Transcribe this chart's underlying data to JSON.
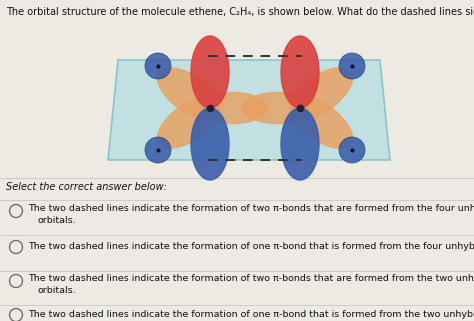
{
  "title": "The orbital structure of the molecule ethene, C₂H₄, is shown below. What do the dashed lines signify?",
  "subtitle": "Select the correct answer below:",
  "options": [
    [
      "The two dashed lines indicate the formation of two π-bonds that are formed from the four unhybridized p",
      "orbitals."
    ],
    [
      "The two dashed lines indicate the formation of one π-bond that is formed from the four unhybridized p orbitals."
    ],
    [
      "The two dashed lines indicate the formation of two π-bonds that are formed from the two unhybridized p",
      "orbitals."
    ],
    [
      "The two dashed lines indicate the formation of one π-bond that is formed from the two unhybridized p orbitals."
    ]
  ],
  "bg_color": "#ede9e3",
  "plane_fill": "#b8dde2",
  "plane_edge": "#7bbcc2",
  "red_lobe": "#d94040",
  "blue_lobe": "#3a5faa",
  "orange_lobe": "#e8a060",
  "dot_color": "#3a5faa",
  "carbon_dot": "#222233",
  "dash_color": "#333333",
  "text_color": "#111111",
  "sep_color": "#cccccc",
  "circle_color": "#666666"
}
